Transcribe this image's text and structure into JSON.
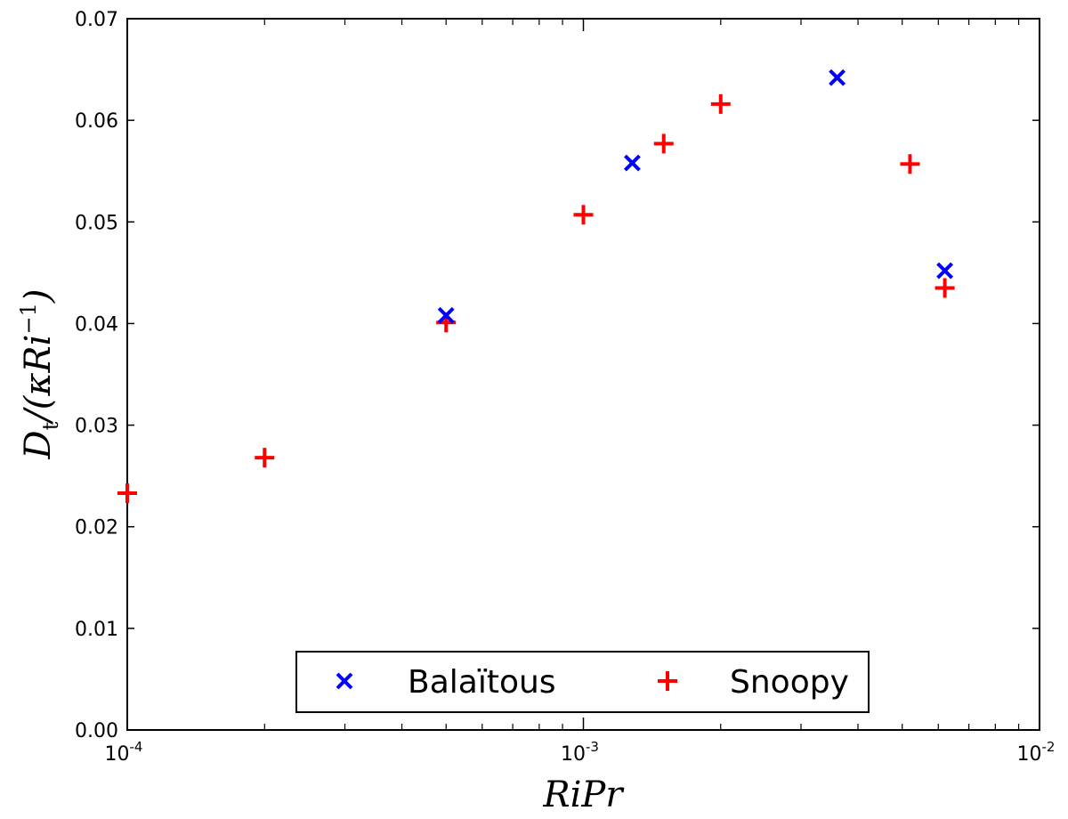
{
  "chart_data": {
    "type": "scatter",
    "xscale": "log",
    "xlim": [
      0.0001,
      0.01
    ],
    "ylim": [
      0.0,
      0.07
    ],
    "x_ticks": [
      {
        "value": 0.0001,
        "base": "10",
        "exp": "-4"
      },
      {
        "value": 0.001,
        "base": "10",
        "exp": "-3"
      },
      {
        "value": 0.01,
        "base": "10",
        "exp": "-2"
      }
    ],
    "y_ticks": [
      "0.00",
      "0.01",
      "0.02",
      "0.03",
      "0.04",
      "0.05",
      "0.06",
      "0.07"
    ],
    "xlabel": "RiPr",
    "ylabel_parts": {
      "main": "D",
      "sub": "t",
      "rest": "/(κRi",
      "sup": "−1",
      "close": ")"
    },
    "grid": false,
    "legend_position": "bottom-center",
    "series": [
      {
        "name": "Balaïtous",
        "marker": "x",
        "color": "#0000ff",
        "points": [
          {
            "x": 0.0005,
            "y": 0.0408
          },
          {
            "x": 0.00128,
            "y": 0.0558
          },
          {
            "x": 0.0036,
            "y": 0.0642
          },
          {
            "x": 0.0062,
            "y": 0.0452
          }
        ]
      },
      {
        "name": "Snoopy",
        "marker": "+",
        "color": "#ff0000",
        "points": [
          {
            "x": 0.0001,
            "y": 0.0233
          },
          {
            "x": 0.0002,
            "y": 0.0268
          },
          {
            "x": 0.0005,
            "y": 0.0401
          },
          {
            "x": 0.001,
            "y": 0.0507
          },
          {
            "x": 0.0015,
            "y": 0.0577
          },
          {
            "x": 0.002,
            "y": 0.0616
          },
          {
            "x": 0.0052,
            "y": 0.0557
          },
          {
            "x": 0.0062,
            "y": 0.0435
          }
        ]
      }
    ]
  }
}
